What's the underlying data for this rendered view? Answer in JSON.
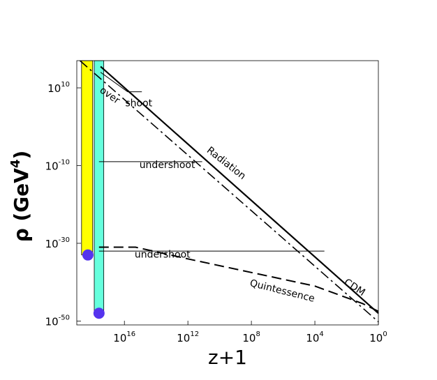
{
  "chart_data": {
    "type": "line",
    "xlabel": "z+1",
    "ylabel_base": "ρ (GeV",
    "ylabel_sup": "4",
    "ylabel_close": ")",
    "x_scale": "log",
    "y_scale": "log",
    "x_reversed": true,
    "xlim_log10": [
      19.0,
      0.0
    ],
    "ylim_log10": [
      -51.0,
      17.0
    ],
    "grid": false,
    "x_ticks": [
      {
        "base": "10",
        "exp": "16",
        "log10": 16
      },
      {
        "base": "10",
        "exp": "12",
        "log10": 12
      },
      {
        "base": "10",
        "exp": "8",
        "log10": 8
      },
      {
        "base": "10",
        "exp": "4",
        "log10": 4
      },
      {
        "base": "10",
        "exp": "0",
        "log10": 0
      }
    ],
    "y_ticks": [
      {
        "base": "10",
        "exp": "10",
        "log10": 10
      },
      {
        "base": "10",
        "exp": "-10",
        "log10": -10
      },
      {
        "base": "10",
        "exp": "-30",
        "log10": -30
      },
      {
        "base": "10",
        "exp": "-50",
        "log10": -50
      }
    ],
    "bands": [
      {
        "color": "#ffff00",
        "log10_z_from": 18.7,
        "log10_z_to": 18.0,
        "log10_rho_from": 17.0,
        "log10_rho_to": -33.0
      },
      {
        "color": "#66ffdd",
        "log10_z_from": 17.9,
        "log10_z_to": 17.3,
        "log10_rho_from": 17.0,
        "log10_rho_to": -48.0
      }
    ],
    "markers": [
      {
        "color": "#5533ee",
        "log10_z": 18.3,
        "log10_rho": -33.0
      },
      {
        "color": "#5533ee",
        "log10_z": 17.6,
        "log10_rho": -48.0
      }
    ],
    "series": [
      {
        "style": "solid-thick",
        "points": [
          [
            17.5,
            15.5
          ],
          [
            0.0,
            -48.0
          ]
        ]
      },
      {
        "style": "dashdot",
        "points": [
          [
            18.8,
            17.0
          ],
          [
            0.0,
            -50.2
          ]
        ]
      },
      {
        "style": "dashed-thick",
        "points": [
          [
            17.6,
            -31.0
          ],
          [
            15.3,
            -31.0
          ],
          [
            12.0,
            -34.0
          ],
          [
            8.0,
            -37.5
          ],
          [
            4.0,
            -41.0
          ],
          [
            1.0,
            -45.5
          ],
          [
            0.0,
            -47.5
          ]
        ]
      },
      {
        "style": "solid-thin",
        "points": [
          [
            17.5,
            14.0
          ],
          [
            15.8,
            9.0
          ],
          [
            14.9,
            9.0
          ]
        ]
      },
      {
        "style": "solid-thin",
        "points": [
          [
            17.6,
            -9.0
          ],
          [
            11.1,
            -9.0
          ]
        ]
      },
      {
        "style": "solid-thin",
        "points": [
          [
            17.6,
            -32.0
          ],
          [
            3.4,
            -32.0
          ]
        ]
      }
    ],
    "annotations": [
      {
        "text": "Radiation",
        "log10_z": 9.7,
        "log10_rho": -10.0,
        "angle": 38
      },
      {
        "text": "CDM",
        "log10_z": 1.6,
        "log10_rho": -42.0,
        "angle": 33
      },
      {
        "text": "Quintessence",
        "log10_z": 6.1,
        "log10_rho": -43.0,
        "angle": 14
      },
      {
        "text": "undershoot",
        "log10_z": 13.3,
        "log10_rho": -10.6,
        "angle": 0
      },
      {
        "text": "undershoot",
        "log10_z": 13.6,
        "log10_rho": -33.7,
        "angle": 0
      }
    ],
    "curved_label": {
      "part1": "over",
      "part2": "shoot",
      "log10_z": 15.8,
      "log10_rho": 6.0
    }
  }
}
